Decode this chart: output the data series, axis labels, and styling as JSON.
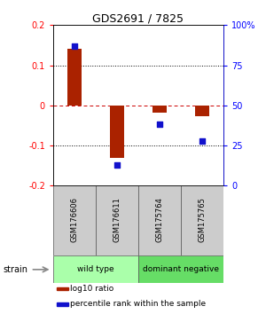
{
  "title": "GDS2691 / 7825",
  "samples": [
    "GSM176606",
    "GSM176611",
    "GSM175764",
    "GSM175765"
  ],
  "log10_ratio": [
    0.14,
    -0.13,
    -0.018,
    -0.028
  ],
  "percentile_rank": [
    87,
    13,
    38,
    28
  ],
  "ylim_left": [
    -0.2,
    0.2
  ],
  "ylim_right": [
    0,
    100
  ],
  "yticks_left": [
    -0.2,
    -0.1,
    0,
    0.1,
    0.2
  ],
  "yticks_right": [
    0,
    25,
    50,
    75,
    100
  ],
  "ytick_labels_left": [
    "-0.2",
    "-0.1",
    "0",
    "0.1",
    "0.2"
  ],
  "ytick_labels_right": [
    "0",
    "25",
    "50",
    "75",
    "100%"
  ],
  "bar_color": "#aa2200",
  "dot_color": "#1111cc",
  "hline_color_zero": "#cc0000",
  "hline_color_dotted": "#000000",
  "groups": [
    {
      "label": "wild type",
      "samples": [
        0,
        1
      ],
      "color": "#aaffaa"
    },
    {
      "label": "dominant negative",
      "samples": [
        2,
        3
      ],
      "color": "#66dd66"
    }
  ],
  "strain_label": "strain",
  "legend_items": [
    {
      "color": "#aa2200",
      "label": "log10 ratio"
    },
    {
      "color": "#1111cc",
      "label": "percentile rank within the sample"
    }
  ],
  "bar_width": 0.32,
  "figsize": [
    3.0,
    3.54
  ],
  "dpi": 100
}
